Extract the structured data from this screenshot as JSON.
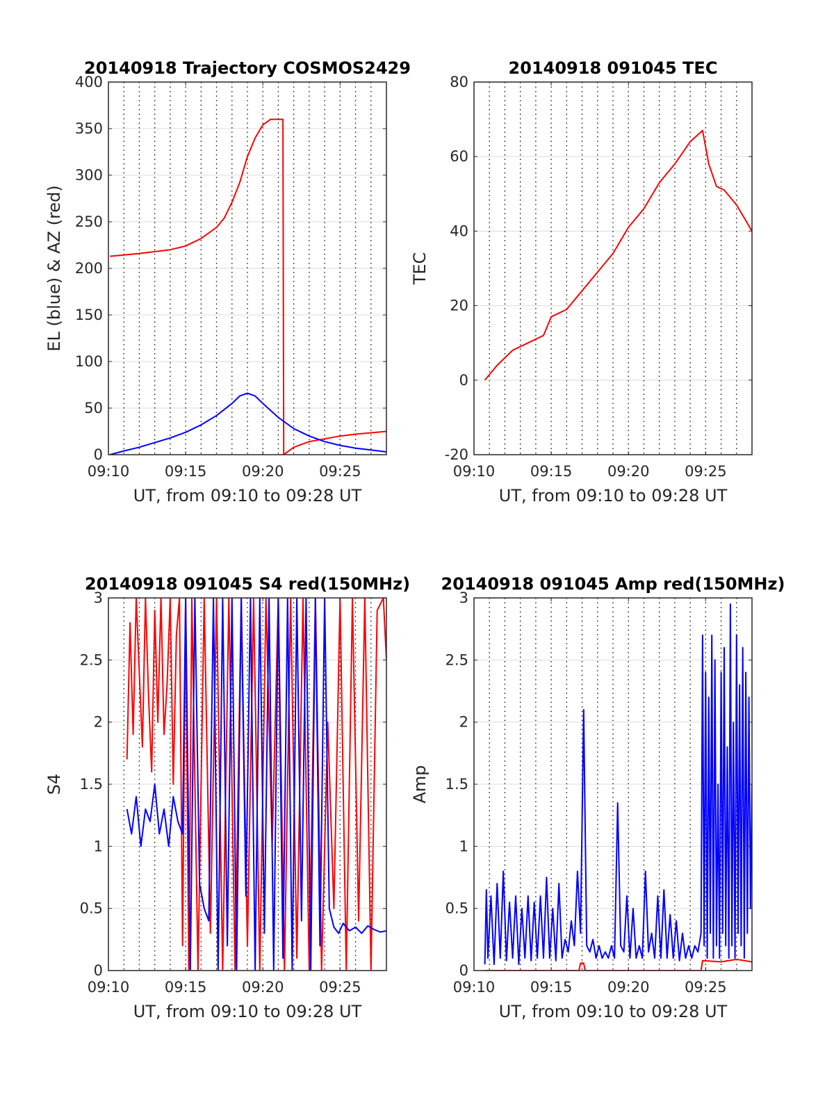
{
  "chart_data": [
    {
      "id": "trajectory",
      "type": "line",
      "title": "20140918 Trajectory COSMOS2429",
      "xlabel": "UT, from 09:10 to 09:28 UT",
      "ylabel": "EL (blue) & AZ (red)",
      "xlim": [
        0,
        18
      ],
      "ylim": [
        0,
        400
      ],
      "xticks": [
        0,
        5,
        10,
        15
      ],
      "xtick_labels": [
        "09:10",
        "09:15",
        "09:20",
        "09:25"
      ],
      "yticks": [
        0,
        50,
        100,
        150,
        200,
        250,
        300,
        350,
        400
      ],
      "ytick_labels": [
        "0",
        "50",
        "100",
        "150",
        "200",
        "250",
        "300",
        "350",
        "400"
      ],
      "grid": true,
      "series": [
        {
          "color": "#ff0000",
          "x": [
            0.1,
            2,
            4,
            5,
            6,
            7,
            7.5,
            8,
            8.5,
            9,
            9.5,
            10,
            10.5,
            11,
            11.3,
            11.35,
            12,
            13,
            14,
            15,
            16,
            17,
            18
          ],
          "y": [
            213,
            216,
            220,
            224,
            232,
            244,
            254,
            271,
            292,
            320,
            340,
            354,
            360,
            360,
            360,
            0,
            8,
            14,
            17,
            20,
            22,
            23.5,
            25
          ]
        },
        {
          "color": "#0000ff",
          "x": [
            0.1,
            1,
            2,
            3,
            4,
            5,
            6,
            7,
            8,
            8.5,
            9,
            9.5,
            10,
            11,
            12,
            13,
            14,
            15,
            16,
            17,
            18
          ],
          "y": [
            0,
            4,
            8,
            13,
            18,
            24,
            32,
            42,
            55,
            63,
            66,
            63,
            55,
            40,
            28,
            20,
            14,
            10,
            7,
            5,
            3
          ]
        }
      ]
    },
    {
      "id": "tec",
      "type": "line",
      "title": "20140918 091045 TEC",
      "xlabel": "UT, from 09:10 to 09:28 UT",
      "ylabel": "TEC",
      "xlim": [
        0,
        18
      ],
      "ylim": [
        -20,
        80
      ],
      "xticks": [
        0,
        5,
        10,
        15
      ],
      "xtick_labels": [
        "09:10",
        "09:15",
        "09:20",
        "09:25"
      ],
      "yticks": [
        -20,
        0,
        20,
        40,
        60,
        80
      ],
      "ytick_labels": [
        "-20",
        "0",
        "20",
        "40",
        "60",
        "80"
      ],
      "grid": true,
      "series": [
        {
          "color": "#ff0000",
          "x": [
            0.7,
            1.5,
            2.5,
            3.5,
            4.5,
            5,
            6,
            7,
            8,
            9,
            10,
            11,
            12,
            13,
            14,
            14.8,
            15.2,
            15.7,
            16.2,
            17,
            18
          ],
          "y": [
            0,
            4,
            8,
            10,
            12,
            17,
            19,
            24,
            29,
            34,
            41,
            46,
            53,
            58,
            64,
            67,
            58,
            52,
            51,
            47,
            40
          ]
        }
      ]
    },
    {
      "id": "s4",
      "type": "line",
      "title": "20140918 091045 S4 red(150MHz)",
      "xlabel": "UT, from 09:10 to 09:28 UT",
      "ylabel": "S4",
      "xlim": [
        0,
        18
      ],
      "ylim": [
        0,
        3
      ],
      "xticks": [
        0,
        5,
        10,
        15
      ],
      "xtick_labels": [
        "09:10",
        "09:15",
        "09:20",
        "09:25"
      ],
      "yticks": [
        0,
        0.5,
        1,
        1.5,
        2,
        2.5,
        3
      ],
      "ytick_labels": [
        "0",
        "0.5",
        "1",
        "1.5",
        "2",
        "2.5",
        "3"
      ],
      "grid": true,
      "series": [
        {
          "color": "#ff0000",
          "x": [
            1.2,
            1.4,
            1.6,
            1.8,
            2.0,
            2.2,
            2.4,
            2.6,
            2.8,
            3.0,
            3.2,
            3.4,
            3.6,
            3.8,
            4.0,
            4.2,
            4.4,
            4.6,
            4.8,
            5.0,
            5.2,
            5.4,
            5.8,
            6.2,
            6.6,
            7.0,
            7.4,
            7.8,
            8.2,
            8.6,
            9.0,
            9.4,
            9.8,
            10.2,
            10.6,
            11.0,
            11.4,
            11.8,
            12.2,
            12.6,
            13.0,
            13.4,
            13.8,
            14.2,
            14.6,
            15.0,
            15.4,
            15.8,
            16.2,
            16.6,
            17.0,
            17.4,
            17.8,
            18.0
          ],
          "y": [
            1.7,
            2.8,
            1.9,
            3.0,
            2.4,
            1.8,
            3.0,
            2.2,
            1.6,
            2.9,
            2.0,
            3.0,
            1.9,
            2.3,
            3.0,
            1.5,
            2.7,
            3.0,
            0.2,
            3.0,
            0,
            3.0,
            0,
            3.0,
            0.3,
            3.0,
            0,
            3.0,
            0,
            3.0,
            0.2,
            3.0,
            0,
            3.0,
            1.0,
            3.0,
            0,
            3.0,
            0.1,
            3.0,
            0,
            3.0,
            0,
            2.0,
            0.5,
            3.0,
            0,
            3.0,
            0.4,
            3.0,
            0,
            2.9,
            3.0,
            2.5
          ]
        },
        {
          "color": "#0000ff",
          "x": [
            1.2,
            1.5,
            1.8,
            2.1,
            2.4,
            2.7,
            3.0,
            3.3,
            3.6,
            3.9,
            4.2,
            4.5,
            4.8,
            5.0,
            5.3,
            5.6,
            5.9,
            6.2,
            6.5,
            6.8,
            7.1,
            7.4,
            7.7,
            8.0,
            8.3,
            8.6,
            8.9,
            9.2,
            9.5,
            9.8,
            10.1,
            10.4,
            10.7,
            11.0,
            11.3,
            11.6,
            11.9,
            12.2,
            12.5,
            12.8,
            13.1,
            13.4,
            13.7,
            14.0,
            14.3,
            14.6,
            14.9,
            15.2,
            15.6,
            16.0,
            16.4,
            16.8,
            17.2,
            17.6,
            18.0
          ],
          "y": [
            1.3,
            1.1,
            1.4,
            1.0,
            1.3,
            1.2,
            1.5,
            1.1,
            1.3,
            1.0,
            1.4,
            1.2,
            1.1,
            3.0,
            0,
            3.0,
            0.7,
            0.5,
            0.4,
            3.0,
            0,
            3.0,
            0.2,
            3.0,
            0,
            3.0,
            0.6,
            3.0,
            0,
            3.0,
            0.3,
            3.0,
            0,
            3.0,
            0.1,
            3.0,
            0,
            3.0,
            0.4,
            3.0,
            0,
            3.0,
            0.2,
            3.0,
            0.5,
            0.35,
            0.3,
            0.38,
            0.32,
            0.35,
            0.3,
            0.36,
            0.33,
            0.31,
            0.32
          ]
        }
      ]
    },
    {
      "id": "amp",
      "type": "line",
      "title": "20140918 091045 Amp red(150MHz)",
      "xlabel": "UT, from 09:10 to 09:28 UT",
      "ylabel": "Amp",
      "xlim": [
        0,
        18
      ],
      "ylim": [
        0,
        3
      ],
      "xticks": [
        0,
        5,
        10,
        15
      ],
      "xtick_labels": [
        "09:10",
        "09:15",
        "09:20",
        "09:25"
      ],
      "yticks": [
        0,
        0.5,
        1,
        1.5,
        2,
        2.5,
        3
      ],
      "ytick_labels": [
        "0",
        "0.5",
        "1",
        "1.5",
        "2",
        "2.5",
        "3"
      ],
      "grid": true,
      "series": [
        {
          "color": "#ff0000",
          "x": [
            0.7,
            6.8,
            6.9,
            7.1,
            7.2,
            14.7,
            14.8,
            16,
            17,
            18
          ],
          "y": [
            0,
            0,
            0.06,
            0.06,
            0,
            0,
            0.08,
            0.07,
            0.09,
            0.07
          ]
        },
        {
          "color": "#0000ff",
          "x": [
            0.7,
            0.8,
            0.9,
            1.1,
            1.3,
            1.5,
            1.7,
            1.9,
            2.1,
            2.3,
            2.5,
            2.7,
            2.9,
            3.1,
            3.3,
            3.5,
            3.7,
            3.9,
            4.1,
            4.3,
            4.5,
            4.7,
            4.9,
            5.1,
            5.3,
            5.5,
            5.7,
            5.9,
            6.1,
            6.3,
            6.5,
            6.7,
            6.9,
            7.1,
            7.3,
            7.5,
            7.7,
            7.9,
            8.1,
            8.3,
            8.5,
            8.7,
            8.9,
            9.1,
            9.3,
            9.5,
            9.7,
            9.9,
            10.1,
            10.3,
            10.5,
            10.7,
            10.9,
            11.1,
            11.3,
            11.5,
            11.7,
            11.9,
            12.1,
            12.3,
            12.5,
            12.7,
            12.9,
            13.1,
            13.3,
            13.5,
            13.7,
            13.9,
            14.1,
            14.3,
            14.5,
            14.7,
            14.8,
            14.9,
            15.0,
            15.1,
            15.2,
            15.3,
            15.4,
            15.5,
            15.6,
            15.7,
            15.8,
            15.9,
            16.0,
            16.1,
            16.2,
            16.3,
            16.4,
            16.5,
            16.6,
            16.7,
            16.8,
            16.9,
            17.0,
            17.1,
            17.2,
            17.3,
            17.4,
            17.5,
            17.6,
            17.7,
            17.8,
            17.9,
            18.0
          ],
          "y": [
            0.05,
            0.65,
            0.1,
            0.6,
            0.05,
            0.7,
            0.1,
            0.8,
            0.08,
            0.55,
            0.1,
            0.6,
            0.05,
            0.5,
            0.1,
            0.6,
            0.08,
            0.55,
            0.1,
            0.6,
            0.1,
            0.75,
            0.1,
            0.5,
            0.08,
            0.7,
            0.1,
            0.25,
            0.15,
            0.4,
            0.2,
            0.8,
            0.3,
            2.1,
            0.2,
            0.15,
            0.25,
            0.1,
            0.2,
            0.1,
            0.15,
            0.1,
            0.2,
            0.1,
            1.35,
            0.2,
            0.15,
            0.6,
            0.1,
            0.5,
            0.1,
            0.2,
            0.1,
            0.8,
            0.15,
            0.3,
            0.1,
            0.6,
            0.1,
            0.65,
            0.1,
            0.45,
            0.1,
            0.4,
            0.08,
            0.3,
            0.1,
            0.2,
            0.1,
            0.2,
            0.15,
            0.3,
            2.7,
            0.2,
            2.4,
            0.1,
            2.2,
            0.3,
            2.7,
            0.1,
            2.5,
            0.2,
            1.5,
            0.1,
            2.4,
            0.3,
            2.6,
            0.2,
            1.8,
            0.1,
            2.95,
            0.2,
            2.0,
            0.1,
            2.7,
            0.3,
            2.3,
            0.2,
            2.6,
            0.1,
            2.4,
            0.3,
            2.2,
            0.5,
            1.5
          ]
        }
      ]
    }
  ]
}
